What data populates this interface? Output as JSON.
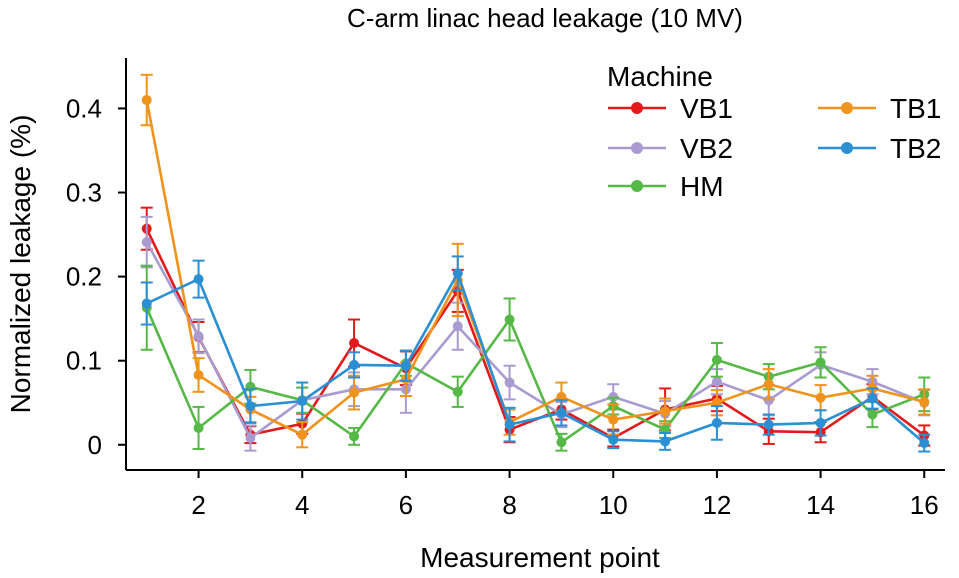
{
  "chart_data": {
    "type": "line",
    "title": "C-arm linac head leakage (10 MV)",
    "xlabel": "Measurement point",
    "ylabel": "Normalized leakage (%)",
    "xlim": [
      0.6,
      16.4
    ],
    "ylim": [
      -0.03,
      0.46
    ],
    "xticks": [
      2,
      4,
      6,
      8,
      10,
      12,
      14,
      16
    ],
    "yticks": [
      0,
      0.1,
      0.2,
      0.3,
      0.4
    ],
    "ytick_labels": [
      "0",
      "0.1",
      "0.2",
      "0.3",
      "0.4"
    ],
    "legend": {
      "title": "Machine",
      "position": "top-right",
      "columns": 2
    },
    "x": [
      1,
      2,
      3,
      4,
      5,
      6,
      7,
      8,
      9,
      10,
      11,
      12,
      13,
      14,
      15,
      16
    ],
    "series": [
      {
        "name": "VB1",
        "color": "#e31a1c",
        "values": [
          0.257,
          0.128,
          0.012,
          0.025,
          0.121,
          0.091,
          0.183,
          0.018,
          0.042,
          0.008,
          0.042,
          0.055,
          0.016,
          0.015,
          0.057,
          0.011
        ],
        "errors": [
          0.025,
          0.018,
          0.01,
          0.012,
          0.028,
          0.02,
          0.025,
          0.015,
          0.012,
          0.01,
          0.025,
          0.015,
          0.015,
          0.012,
          0.015,
          0.012
        ]
      },
      {
        "name": "VB2",
        "color": "#a99bd0",
        "values": [
          0.241,
          0.129,
          0.008,
          0.053,
          0.066,
          0.066,
          0.141,
          0.074,
          0.036,
          0.057,
          0.037,
          0.075,
          0.053,
          0.095,
          0.075,
          0.05
        ],
        "errors": [
          0.03,
          0.02,
          0.015,
          0.015,
          0.02,
          0.028,
          0.028,
          0.02,
          0.015,
          0.015,
          0.015,
          0.015,
          0.018,
          0.015,
          0.015,
          0.015
        ]
      },
      {
        "name": "HM",
        "color": "#56b947",
        "values": [
          0.163,
          0.02,
          0.069,
          0.053,
          0.01,
          0.097,
          0.063,
          0.149,
          0.003,
          0.046,
          0.018,
          0.101,
          0.081,
          0.098,
          0.036,
          0.06
        ],
        "errors": [
          0.05,
          0.025,
          0.02,
          0.015,
          0.01,
          0.015,
          0.018,
          0.025,
          0.01,
          0.01,
          0.01,
          0.02,
          0.015,
          0.018,
          0.015,
          0.02
        ]
      },
      {
        "name": "TB1",
        "color": "#f0931c",
        "values": [
          0.41,
          0.083,
          0.042,
          0.012,
          0.062,
          0.078,
          0.196,
          0.027,
          0.057,
          0.03,
          0.04,
          0.05,
          0.072,
          0.056,
          0.067,
          0.051
        ],
        "errors": [
          0.03,
          0.02,
          0.015,
          0.015,
          0.02,
          0.02,
          0.043,
          0.015,
          0.017,
          0.018,
          0.015,
          0.015,
          0.018,
          0.015,
          0.015,
          0.015
        ]
      },
      {
        "name": "TB2",
        "color": "#2b8fd4",
        "values": [
          0.168,
          0.197,
          0.046,
          0.052,
          0.095,
          0.094,
          0.204,
          0.024,
          0.038,
          0.006,
          0.004,
          0.026,
          0.024,
          0.026,
          0.055,
          0.002
        ],
        "errors": [
          0.025,
          0.022,
          0.02,
          0.022,
          0.015,
          0.018,
          0.02,
          0.02,
          0.015,
          0.01,
          0.01,
          0.02,
          0.012,
          0.015,
          0.012,
          0.01
        ]
      }
    ]
  }
}
